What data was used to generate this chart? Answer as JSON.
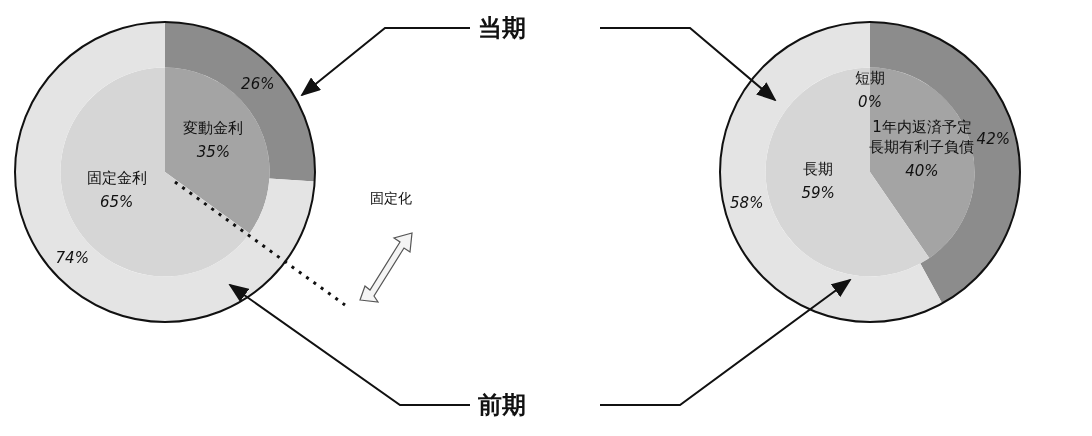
{
  "chart_data": [
    {
      "type": "pie",
      "categories": [
        "変動金利",
        "固定金利"
      ],
      "series": [
        {
          "name": "当期",
          "values": [
            26,
            74
          ],
          "value_labels": [
            "26%",
            "74%"
          ],
          "colors": [
            "#8c8c8c",
            "#e4e4e4"
          ]
        },
        {
          "name": "前期",
          "values": [
            35,
            65
          ],
          "value_labels": [
            "35%",
            "65%"
          ],
          "colors": [
            "#a4a4a4",
            "#d6d6d6"
          ]
        }
      ],
      "annotations": [
        "固定化"
      ],
      "legend": false
    },
    {
      "type": "pie",
      "categories": [
        "短期",
        "1年内返済予定長期有利子負債",
        "長期"
      ],
      "series": [
        {
          "values": [
            0,
            42,
            58
          ],
          "value_labels": [
            null,
            "42%",
            "58%"
          ],
          "colors": [
            "#6e6e6e",
            "#8c8c8c",
            "#e4e4e4"
          ]
        },
        {
          "values": [
            0,
            40,
            59
          ],
          "value_labels": [
            "0%",
            "40%",
            "59%"
          ],
          "colors": [
            "#6e6e6e",
            "#a4a4a4",
            "#d6d6d6"
          ]
        }
      ],
      "legend": false
    }
  ]
}
